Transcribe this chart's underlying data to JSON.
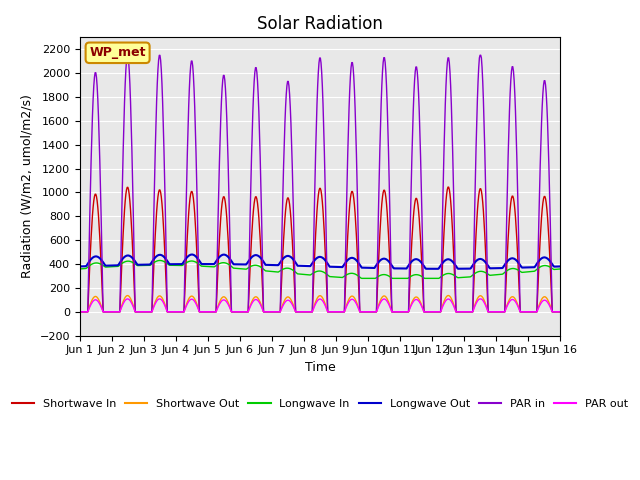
{
  "title": "Solar Radiation",
  "xlabel": "Time",
  "ylabel": "Radiation (W/m2, umol/m2/s)",
  "ylim": [
    -200,
    2300
  ],
  "yticks": [
    -200,
    0,
    200,
    400,
    600,
    800,
    1000,
    1200,
    1400,
    1600,
    1800,
    2000,
    2200
  ],
  "xtick_labels": [
    "Jun 1",
    "Jun 2",
    "Jun 3",
    "Jun 4",
    "Jun 5",
    "Jun 6",
    "Jun 7",
    "Jun 8",
    "Jun 9",
    "Jun 10",
    "Jun 11",
    "Jun 12",
    "Jun 13",
    "Jun 14",
    "Jun 15",
    "Jun 16"
  ],
  "n_days": 16,
  "annotation_text": "WP_met",
  "annotation_bg": "#ffff99",
  "annotation_border": "#cc8800",
  "bg_color": "#e8e8e8",
  "lines": {
    "shortwave_in": {
      "color": "#cc0000",
      "label": "Shortwave In",
      "peak": 1000,
      "scale": 1.0
    },
    "shortwave_out": {
      "color": "#ff9900",
      "label": "Shortwave Out",
      "peak": 130,
      "scale": 1.0
    },
    "longwave_in": {
      "color": "#00cc00",
      "label": "Longwave In",
      "peak": 420,
      "base": 300,
      "scale": 1.0
    },
    "longwave_out": {
      "color": "#0000cc",
      "label": "Longwave Out",
      "peak": 500,
      "base": 350,
      "scale": 1.0
    },
    "par_in": {
      "color": "#8800cc",
      "label": "PAR in",
      "peak": 2100,
      "scale": 1.0
    },
    "par_out": {
      "color": "#ff00ff",
      "label": "PAR out",
      "peak": 100,
      "scale": 1.0
    }
  }
}
